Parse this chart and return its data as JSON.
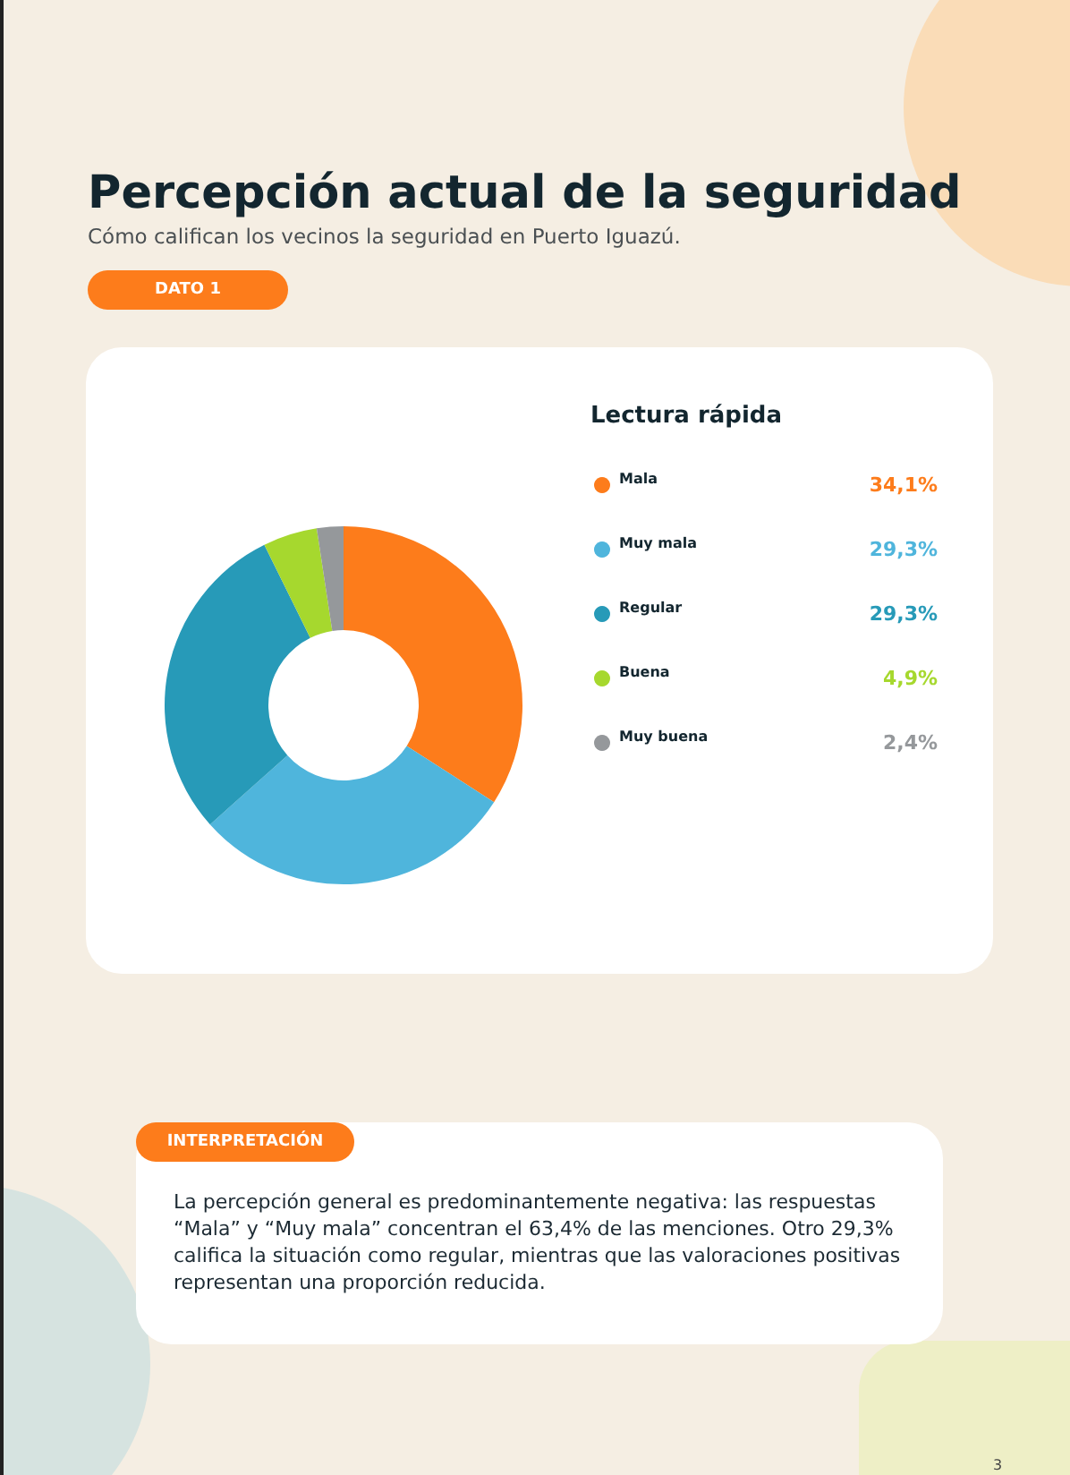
{
  "chart_data": {
    "type": "donut",
    "title": "Percepción actual de la seguridad",
    "subtitle": "Cómo califican los vecinos la seguridad en Puerto Iguazú.",
    "legend_title": "Lectura rápida",
    "categories": [
      "Mala",
      "Muy mala",
      "Regular",
      "Buena",
      "Muy buena"
    ],
    "values": [
      34.1,
      29.3,
      29.3,
      4.9,
      2.4
    ],
    "colors": [
      "#fd7c1b",
      "#4fb5dc",
      "#279ab8",
      "#a6d82e",
      "#95989b"
    ],
    "value_labels": [
      "34,1%",
      "29,3%",
      "29,3%",
      "4,9%",
      "2,4%"
    ],
    "legend": "right",
    "annotations": [
      "DATO 1",
      "INTERPRETACIÓN",
      "La percepción general es predominantemente negativa: las respuestas “Mala” y “Muy mala” concentran el 63,4% de las menciones. Otro 29,3% califica la situación como regular, mientras que las valoraciones positivas representan una proporción reducida.",
      "3"
    ]
  }
}
